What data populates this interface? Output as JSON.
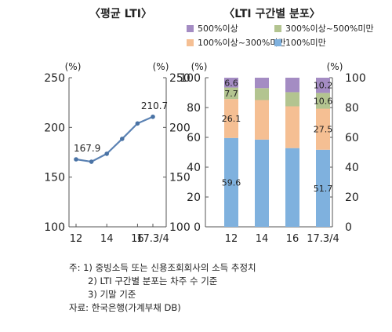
{
  "charts": [
    {
      "type": "line",
      "title": "〈평균 LTI〉",
      "unit_left": "(%)",
      "unit_right": "(%)",
      "ylim": [
        100,
        250
      ],
      "yticks": [
        100,
        150,
        200,
        250
      ],
      "x_tick_labels": [
        "12",
        "14",
        "16",
        "17.3/4"
      ],
      "series": [
        {
          "values": [
            167.9,
            165.5,
            173.5,
            188.5,
            204.0,
            210.7
          ],
          "labels": [
            "167.9",
            "",
            "",
            "",
            "",
            "210.7"
          ]
        }
      ],
      "colors": {
        "line": "#5b82b3",
        "point": "#4a73a5"
      }
    },
    {
      "type": "bar",
      "stacked": true,
      "title": "〈LTI 구간별 분포〉",
      "unit_left": "(%)",
      "unit_right": "(%)",
      "ylim": [
        0,
        100
      ],
      "yticks": [
        0,
        20,
        40,
        60,
        80,
        100
      ],
      "categories": [
        "12",
        "14",
        "16",
        "17.3/4"
      ],
      "series": [
        {
          "name": "100%미만",
          "values": [
            59.6,
            58.5,
            52.8,
            51.7
          ],
          "labels": [
            "59.6",
            "",
            "",
            "51.7"
          ],
          "color": "#7fb1de"
        },
        {
          "name": "100%이상~300%미만",
          "values": [
            26.1,
            26.5,
            28.0,
            27.5
          ],
          "labels": [
            "26.1",
            "",
            "",
            "27.5"
          ],
          "color": "#f5bf93"
        },
        {
          "name": "300%이상~500%미만",
          "values": [
            7.7,
            8.0,
            9.5,
            10.6
          ],
          "labels": [
            "7.7",
            "",
            "",
            "10.6"
          ],
          "color": "#b3c490"
        },
        {
          "name": "500%이상",
          "values": [
            6.6,
            7.0,
            9.7,
            10.2
          ],
          "labels": [
            "6.6",
            "",
            "",
            "10.2"
          ],
          "color": "#a48cc3"
        }
      ]
    }
  ],
  "notes": {
    "line1": "주: 1) 중빙소득 또는 신용조회회사의 소득 추정치",
    "line2": "2) LTI 구간별 분포는 차주 수 기준",
    "line3": "3) 기말 기준",
    "source": "자료: 한국은행(가계부채 DB)"
  }
}
